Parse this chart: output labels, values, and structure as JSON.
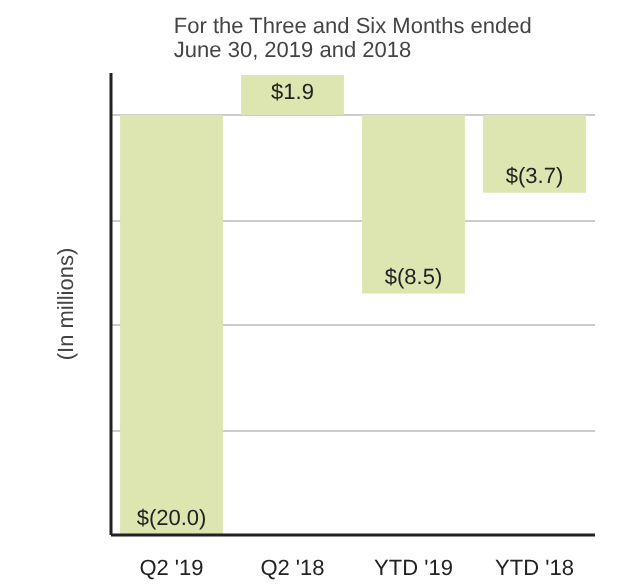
{
  "chart_data": {
    "type": "bar",
    "title": "For the Three and Six Months ended\nJune 30, 2019 and 2018",
    "ylabel": "(In millions)",
    "categories": [
      "Q2 '19",
      "Q2 '18",
      "YTD '19",
      "YTD '18"
    ],
    "values": [
      -20.0,
      1.9,
      -8.5,
      -3.7
    ],
    "value_labels": [
      "$(20.0)",
      "$1.9",
      "$(8.5)",
      "$(3.7)"
    ],
    "color": "#dde5b0",
    "ylim": [
      -20,
      2
    ],
    "yticks": [
      {
        "value": -20,
        "label": null
      },
      {
        "value": -15,
        "label": null
      },
      {
        "value": -10,
        "label": null
      },
      {
        "value": -5,
        "label": null
      },
      {
        "value": 0,
        "label": null
      }
    ],
    "grid": "y",
    "tick_labels": "x"
  }
}
